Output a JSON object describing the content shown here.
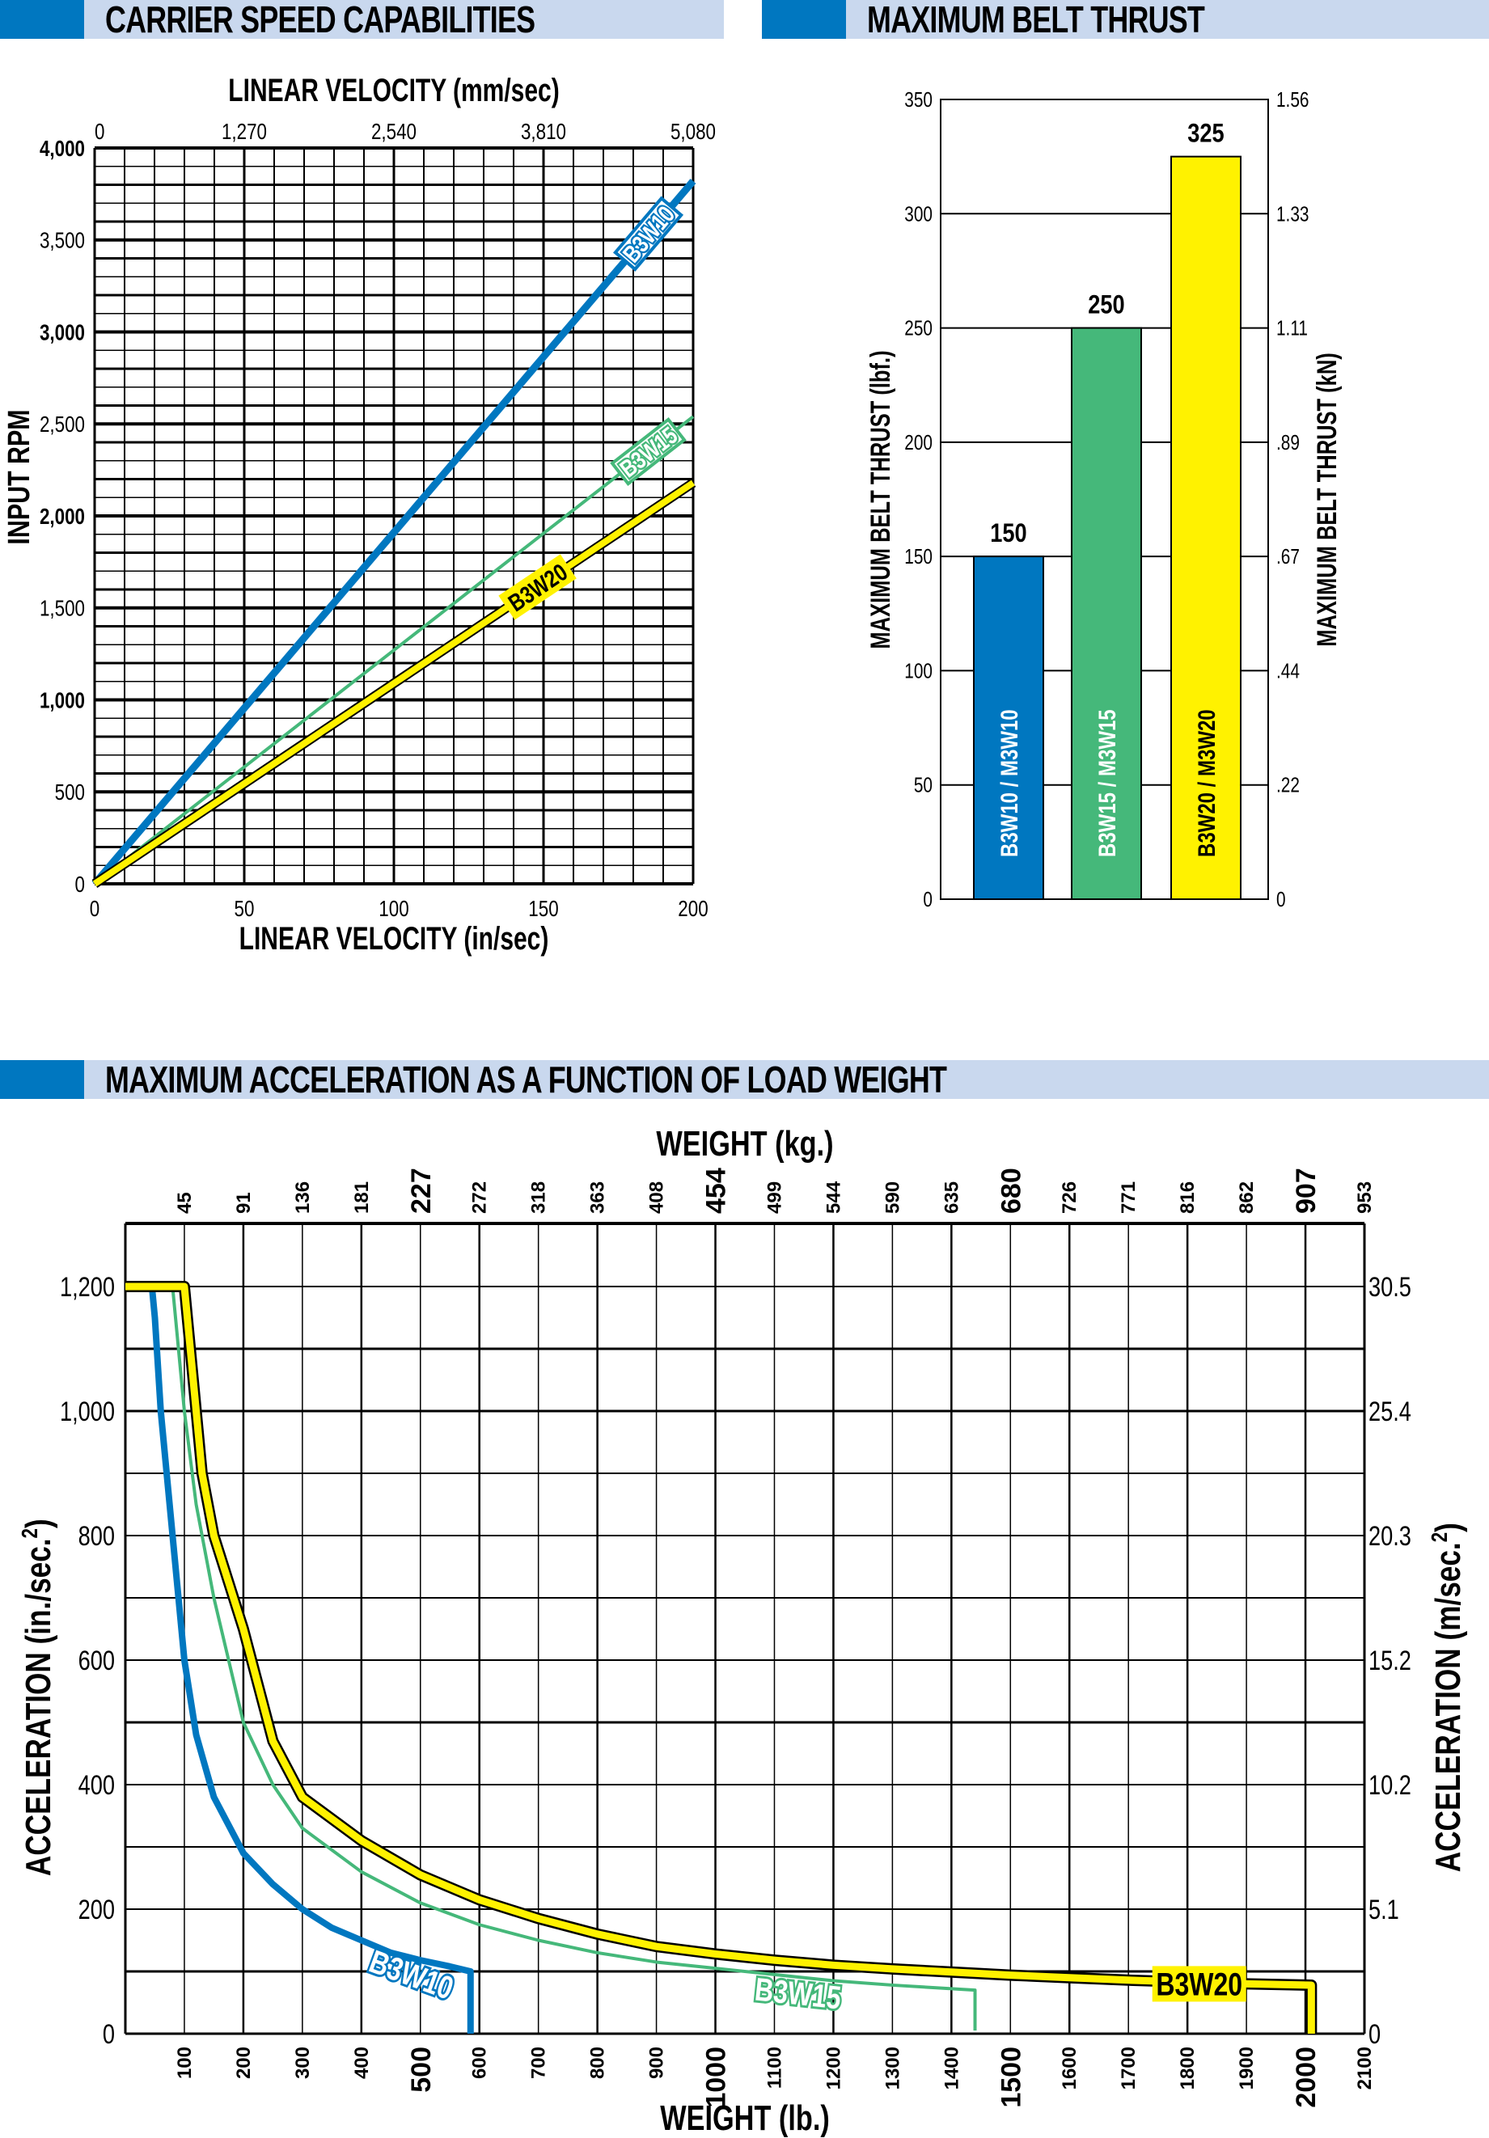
{
  "headers": {
    "speed": "CARRIER SPEED CAPABILITIES",
    "thrust": "MAXIMUM BELT THRUST",
    "accel": "MAXIMUM ACCELERATION AS A FUNCTION OF LOAD WEIGHT"
  },
  "colors": {
    "blue": "#0077c0",
    "green": "#45b87a",
    "yellow": "#fff200",
    "header_bg": "#c9d8ee"
  },
  "chart_data": [
    {
      "type": "line",
      "title": "CARRIER SPEED CAPABILITIES",
      "xlabel": "LINEAR VELOCITY (in/sec)",
      "x2label": "LINEAR VELOCITY (mm/sec)",
      "ylabel": "INPUT RPM",
      "xlim": [
        0,
        200
      ],
      "ylim": [
        0,
        4000
      ],
      "xticks": [
        "0",
        "50",
        "100",
        "150",
        "200"
      ],
      "xtick_values": [
        0,
        50,
        100,
        150,
        200
      ],
      "x2ticks": [
        "0",
        "1,270",
        "2,540",
        "3,810",
        "5,080"
      ],
      "yticks": [
        "0",
        "500",
        "1,000",
        "1,500",
        "2,000",
        "2,500",
        "3,000",
        "3,500",
        "4,000"
      ],
      "ytick_values": [
        0,
        500,
        1000,
        1500,
        2000,
        2500,
        3000,
        3500,
        4000
      ],
      "grid": true,
      "series": [
        {
          "name": "B3W10",
          "x": [
            0,
            200
          ],
          "y": [
            0,
            3820
          ]
        },
        {
          "name": "B3W15",
          "x": [
            0,
            200
          ],
          "y": [
            0,
            2540
          ]
        },
        {
          "name": "B3W20",
          "x": [
            0,
            200
          ],
          "y": [
            0,
            2180
          ]
        }
      ]
    },
    {
      "type": "bar",
      "title": "MAXIMUM BELT THRUST",
      "ylabel": "MAXIMUM BELT THRUST (lbf.)",
      "y2label": "MAXIMUM BELT THRUST (kN)",
      "categories": [
        "B3W10 / M3W10",
        "B3W15 / M3W15",
        "B3W20 / M3W20"
      ],
      "values": [
        150,
        250,
        325
      ],
      "value_labels": [
        "150",
        "250",
        "325"
      ],
      "ylim": [
        0,
        350
      ],
      "yticks": [
        "0",
        "50",
        "100",
        "150",
        "200",
        "250",
        "300",
        "350"
      ],
      "ytick_values": [
        0,
        50,
        100,
        150,
        200,
        250,
        300,
        350
      ],
      "y2ticks": [
        "0",
        ".22",
        ".44",
        ".67",
        ".89",
        "1.11",
        "1.33",
        "1.56"
      ],
      "grid": true
    },
    {
      "type": "line",
      "title": "MAXIMUM ACCELERATION AS A FUNCTION OF LOAD WEIGHT",
      "xlabel": "WEIGHT (lb.)",
      "x2label": "WEIGHT (kg.)",
      "ylabel": "ACCELERATION (in./sec.",
      "y2label": "ACCELERATION (m/sec.",
      "sup": "2",
      "close": ")",
      "xlim": [
        0,
        2100
      ],
      "ylim": [
        0,
        1300
      ],
      "xticks": [
        "100",
        "200",
        "300",
        "400",
        "500",
        "600",
        "700",
        "800",
        "900",
        "1000",
        "1100",
        "1200",
        "1300",
        "1400",
        "1500",
        "1600",
        "1700",
        "1800",
        "1900",
        "2000",
        "2100"
      ],
      "x2ticks": [
        "45",
        "91",
        "136",
        "181",
        "227",
        "272",
        "318",
        "363",
        "408",
        "454",
        "499",
        "544",
        "590",
        "635",
        "680",
        "726",
        "771",
        "816",
        "862",
        "907",
        "953"
      ],
      "yticks": [
        "0",
        "200",
        "400",
        "600",
        "800",
        "1,000",
        "1,200"
      ],
      "ytick_values": [
        0,
        200,
        400,
        600,
        800,
        1000,
        1200
      ],
      "y2ticks": [
        "0",
        "5.1",
        "10.2",
        "15.2",
        "20.3",
        "25.4",
        "30.5"
      ],
      "grid": true,
      "series": [
        {
          "name": "B3W10",
          "x": [
            0,
            45,
            50,
            60,
            80,
            100,
            120,
            150,
            200,
            250,
            300,
            350,
            400,
            450,
            500,
            550,
            585,
            585
          ],
          "y": [
            1200,
            1200,
            1150,
            1000,
            800,
            600,
            480,
            380,
            290,
            240,
            200,
            170,
            150,
            130,
            118,
            108,
            100,
            0
          ]
        },
        {
          "name": "B3W15",
          "x": [
            0,
            80,
            90,
            100,
            120,
            150,
            200,
            250,
            300,
            400,
            500,
            600,
            700,
            800,
            900,
            1000,
            1100,
            1200,
            1300,
            1440,
            1440
          ],
          "y": [
            1200,
            1200,
            1100,
            1000,
            850,
            700,
            500,
            400,
            330,
            260,
            210,
            175,
            150,
            130,
            115,
            105,
            95,
            85,
            78,
            70,
            5
          ]
        },
        {
          "name": "B3W20",
          "x": [
            0,
            100,
            110,
            130,
            150,
            200,
            250,
            300,
            400,
            500,
            600,
            700,
            800,
            900,
            1000,
            1100,
            1200,
            1300,
            1400,
            1500,
            1600,
            1700,
            1800,
            1900,
            2010,
            2010
          ],
          "y": [
            1200,
            1200,
            1100,
            900,
            800,
            650,
            470,
            380,
            310,
            255,
            215,
            185,
            160,
            140,
            128,
            118,
            110,
            104,
            99,
            94,
            90,
            86,
            83,
            80,
            78,
            0
          ]
        }
      ]
    }
  ]
}
